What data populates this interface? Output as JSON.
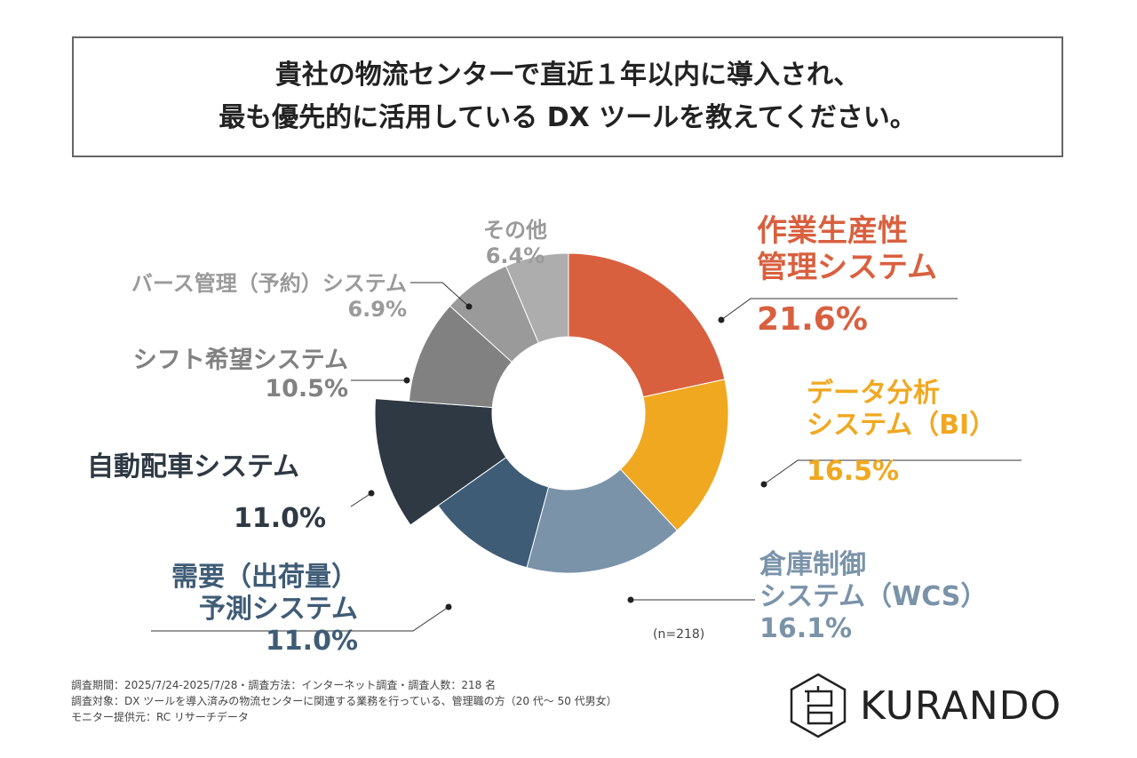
{
  "title": {
    "line1": "貴社の物流センターで直近１年以内に導入され、",
    "line2": "最も優先的に活用している DX ツールを教えてください。"
  },
  "chart_data": {
    "type": "pie",
    "donut": true,
    "n_label": "(n=218)",
    "slices": [
      {
        "name1": "作業生産性",
        "name2": "管理システム",
        "value": 21.6,
        "label": "21.6%",
        "color": "#D9603F"
      },
      {
        "name1": "データ分析",
        "name2": "システム（BI）",
        "value": 16.5,
        "label": "16.5%",
        "color": "#F0A821"
      },
      {
        "name1": "倉庫制御",
        "name2": "システム（WCS）",
        "value": 16.1,
        "label": "16.1%",
        "color": "#7A93A9"
      },
      {
        "name1": "需要（出荷量）",
        "name2": "予測システム",
        "value": 11.0,
        "label": "11.0%",
        "color": "#3F5C76"
      },
      {
        "name1": "自動配車システム",
        "name2": "",
        "value": 11.0,
        "label": "11.0%",
        "color": "#2E3943"
      },
      {
        "name1": "シフト希望システム",
        "name2": "",
        "value": 10.5,
        "label": "10.5%",
        "color": "#818181"
      },
      {
        "name1": "バース管理（予約）システム",
        "name2": "",
        "value": 6.9,
        "label": "6.9%",
        "color": "#9A9A9A"
      },
      {
        "name1": "その他",
        "name2": "",
        "value": 6.4,
        "label": "6.4%",
        "color": "#ADADAD"
      }
    ]
  },
  "footer": {
    "line1": "調査期間：2025/7/24-2025/7/28・調査方法：インターネット調査・調査人数：218 名",
    "line2": "調査対象：DX ツールを導入済みの物流センターに関連する業務を行っている、管理職の方（20 代～ 50 代男女）",
    "line3": "モニター提供元：RC リサーチデータ"
  },
  "logo": {
    "text": "KURANDO"
  }
}
